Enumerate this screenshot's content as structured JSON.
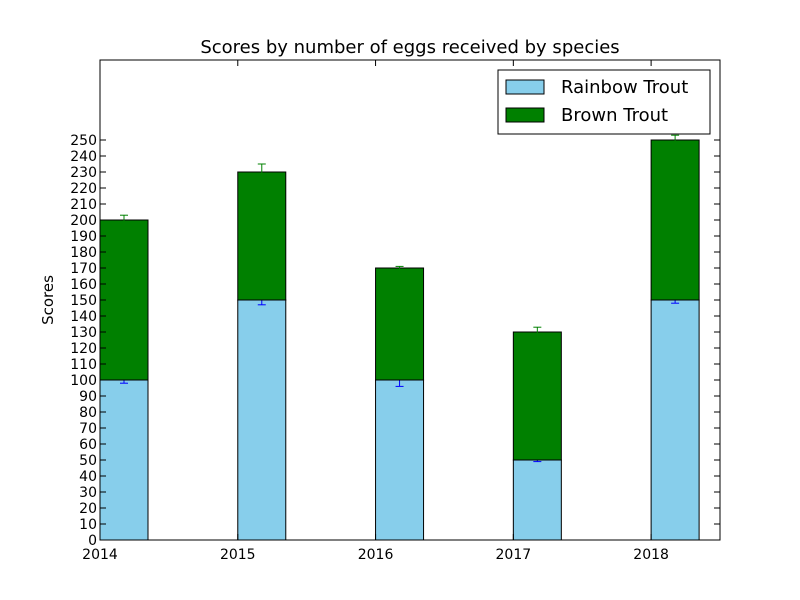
{
  "chart_data": {
    "type": "bar",
    "stacked": true,
    "title": "Scores by number of eggs received by species",
    "xlabel": "",
    "ylabel": "Scores",
    "categories": [
      "2014",
      "2015",
      "2016",
      "2017",
      "2018"
    ],
    "x_ticks": [
      "2014",
      "2015",
      "2016",
      "2017",
      "2018"
    ],
    "xlim": [
      0,
      4.5
    ],
    "ylim": [
      0,
      300
    ],
    "yticks": [
      0,
      10,
      20,
      30,
      40,
      50,
      60,
      70,
      80,
      90,
      100,
      110,
      120,
      130,
      140,
      150,
      160,
      170,
      180,
      190,
      200,
      210,
      220,
      230,
      240,
      250
    ],
    "series": [
      {
        "name": "Rainbow Trout",
        "color": "#87ceeb",
        "values": [
          100,
          150,
          100,
          50,
          150
        ],
        "errors": [
          2,
          3,
          4,
          1,
          2
        ],
        "error_color": "#0000ff"
      },
      {
        "name": "Brown Trout",
        "color": "#008000",
        "values": [
          100,
          80,
          70,
          80,
          100
        ],
        "errors": [
          3,
          5,
          1,
          3,
          3
        ],
        "error_color": "#008000"
      }
    ],
    "legend": {
      "position": "top-right"
    }
  }
}
